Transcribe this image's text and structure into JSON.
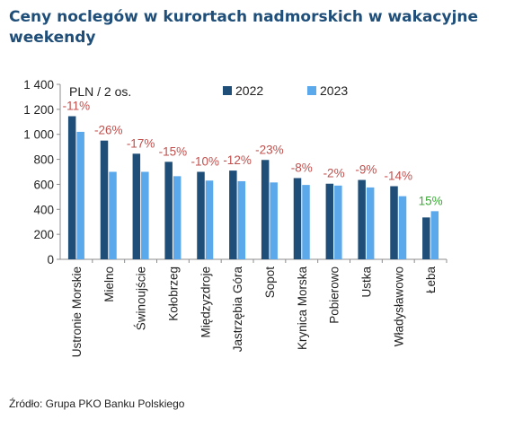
{
  "title": "Ceny noclegów w kurortach nadmorskich w wakacyjne weekendy",
  "source": "Źródło: Grupa PKO Banku Polskiego",
  "colors": {
    "series_2022": "#1f4e79",
    "series_2023": "#5ba8ea",
    "negative_change": "#c0504d",
    "positive_change": "#3aaa35",
    "title": "#1f4e79"
  },
  "chart_data": {
    "type": "bar",
    "unit_label": "PLN / 2 os.",
    "categories": [
      "Ustronie Morskie",
      "Mielno",
      "Świnoujście",
      "Kołobrzeg",
      "Międzyzdroje",
      "Jastrzębia Góra",
      "Sopot",
      "Krynica Morska",
      "Pobierowo",
      "Ustka",
      "Władysławowo",
      "Łeba"
    ],
    "series": [
      {
        "name": "2022",
        "values": [
          1145,
          950,
          845,
          780,
          700,
          710,
          795,
          650,
          605,
          635,
          585,
          335
        ]
      },
      {
        "name": "2023",
        "values": [
          1020,
          700,
          700,
          665,
          630,
          625,
          615,
          595,
          590,
          575,
          505,
          385
        ]
      }
    ],
    "change_labels": [
      "-11%",
      "-26%",
      "-17%",
      "-15%",
      "-10%",
      "-12%",
      "-23%",
      "-8%",
      "-2%",
      "-9%",
      "-14%",
      "15%"
    ],
    "y_ticks": [
      "0",
      "200",
      "400",
      "600",
      "800",
      "1 000",
      "1 200",
      "1 400"
    ],
    "ylim": [
      0,
      1400
    ],
    "grid": false,
    "legend_position": "top"
  }
}
